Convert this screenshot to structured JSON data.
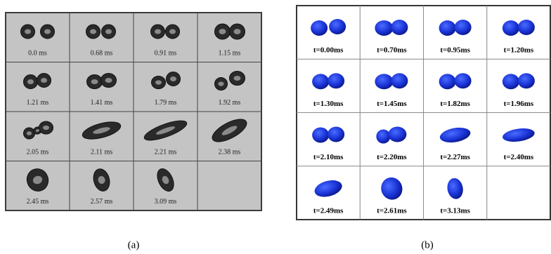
{
  "panels": [
    {
      "caption": "(a)",
      "labels": [
        "0.0 ms",
        "0.68 ms",
        "0.91 ms",
        "1.15 ms",
        "1.21 ms",
        "1.41 ms",
        "1.79 ms",
        "1.92 ms",
        "2.05 ms",
        "2.11 ms",
        "2.21 ms",
        "2.38 ms",
        "2.45 ms",
        "2.57 ms",
        "3.09 ms"
      ]
    },
    {
      "caption": "(b)",
      "labels": [
        "t=0.00ms",
        "t=0.70ms",
        "t=0.95ms",
        "t=1.20ms",
        "t=1.30ms",
        "t=1.45ms",
        "t=1.82ms",
        "t=1.96ms",
        "t=2.10ms",
        "t=2.20ms",
        "t=2.27ms",
        "t=2.40ms",
        "t=2.49ms",
        "t=2.61ms",
        "t=3.13ms"
      ]
    }
  ]
}
